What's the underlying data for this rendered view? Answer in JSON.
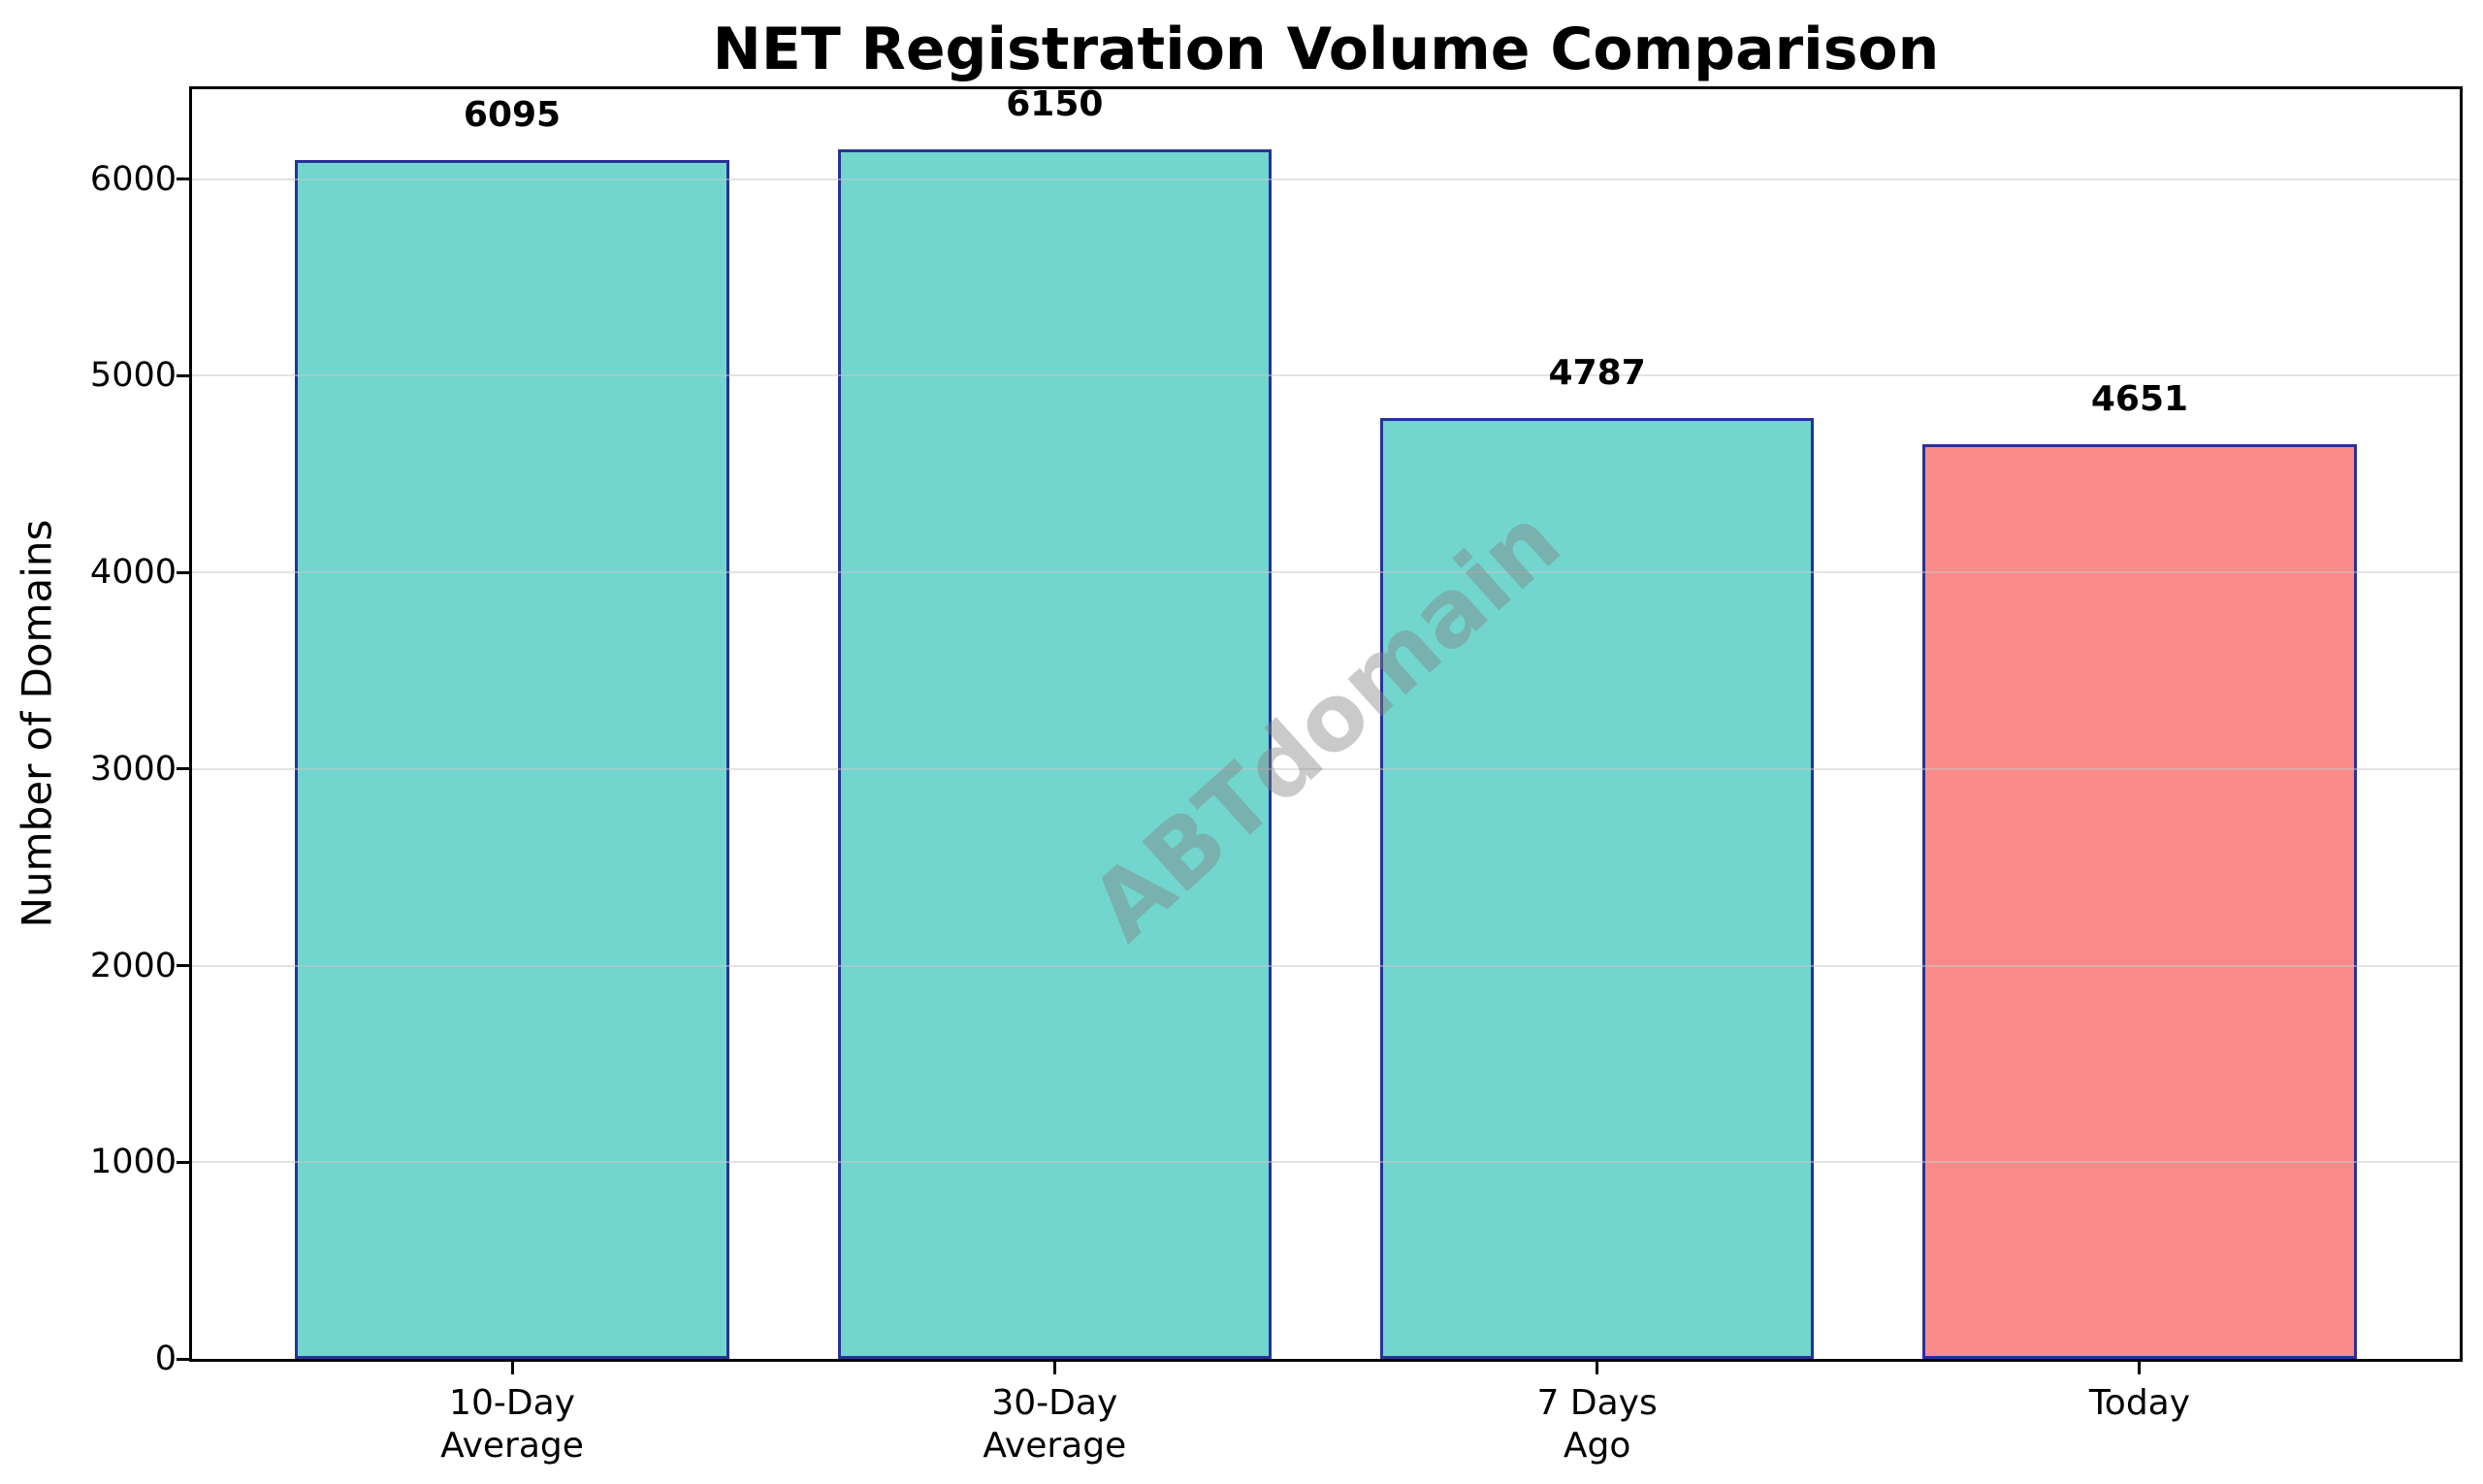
{
  "chart_data": {
    "type": "bar",
    "title": "NET Registration Volume Comparison",
    "ylabel": "Number of Domains",
    "xlabel": "",
    "watermark": "ABTdomain",
    "categories": [
      "10-Day\nAverage",
      "30-Day\nAverage",
      "7 Days\nAgo",
      "Today"
    ],
    "values": [
      6095,
      6150,
      4787,
      4651
    ],
    "value_labels": [
      "6095",
      "6150",
      "4787",
      "4651"
    ],
    "bar_colors": [
      "#72d5ce",
      "#72d5ce",
      "#72d5ce",
      "#fb8b88"
    ],
    "bar_edge_color": "#283296",
    "grid_color": "#c8c8c8",
    "spine_color": "#000000",
    "yticks": [
      0,
      1000,
      2000,
      3000,
      4000,
      5000,
      6000
    ],
    "ylim": [
      0,
      6457.5
    ],
    "grid": "horizontal",
    "legend": "none",
    "bar_width_fraction": 0.8
  }
}
